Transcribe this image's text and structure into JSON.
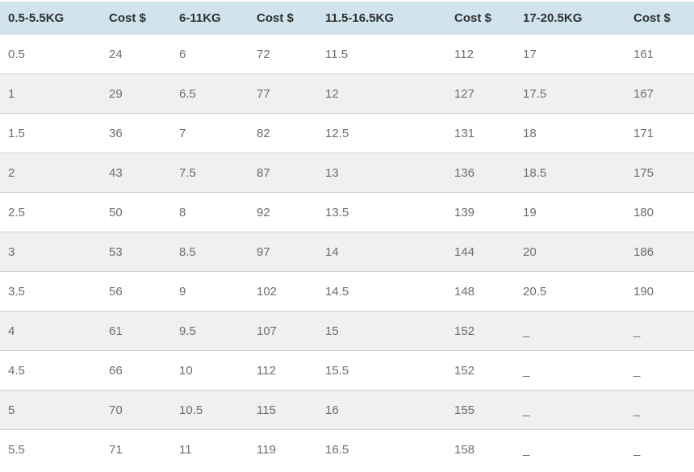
{
  "table": {
    "headers": [
      {
        "label": "0.5-5.5KG"
      },
      {
        "label": "Cost $"
      },
      {
        "label": "6-11KG"
      },
      {
        "label": "Cost $"
      },
      {
        "label": "11.5-16.5KG"
      },
      {
        "label": "Cost $"
      },
      {
        "label": "17-20.5KG"
      },
      {
        "label": "Cost $"
      }
    ],
    "rows": [
      [
        "0.5",
        "24",
        "6",
        "72",
        "11.5",
        "112",
        "17",
        "161"
      ],
      [
        "1",
        "29",
        "6.5",
        "77",
        "12",
        "127",
        "17.5",
        "167"
      ],
      [
        "1.5",
        "36",
        "7",
        "82",
        "12.5",
        "131",
        "18",
        "171"
      ],
      [
        "2",
        "43",
        "7.5",
        "87",
        "13",
        "136",
        "18.5",
        "175"
      ],
      [
        "2.5",
        "50",
        "8",
        "92",
        "13.5",
        "139",
        "19",
        "180"
      ],
      [
        "3",
        "53",
        "8.5",
        "97",
        "14",
        "144",
        "20",
        "186"
      ],
      [
        "3.5",
        "56",
        "9",
        "102",
        "14.5",
        "148",
        "20.5",
        "190"
      ],
      [
        "4",
        "61",
        "9.5",
        "107",
        "15",
        "152",
        "_",
        "_"
      ],
      [
        "4.5",
        "66",
        "10",
        "112",
        "15.5",
        "152",
        "_",
        "_"
      ],
      [
        "5",
        "70",
        "10.5",
        "115",
        "16",
        "155",
        "_",
        "_"
      ],
      [
        "5.5",
        "71",
        "11",
        "119",
        "16.5",
        "158",
        "_",
        "_"
      ]
    ]
  },
  "colors": {
    "header_background": "#d1e4ee",
    "header_text": "#2f2f2f",
    "body_text": "#6d6d6d",
    "alt_row_background": "#f0f0f0",
    "row_border": "#d8d8d8"
  }
}
